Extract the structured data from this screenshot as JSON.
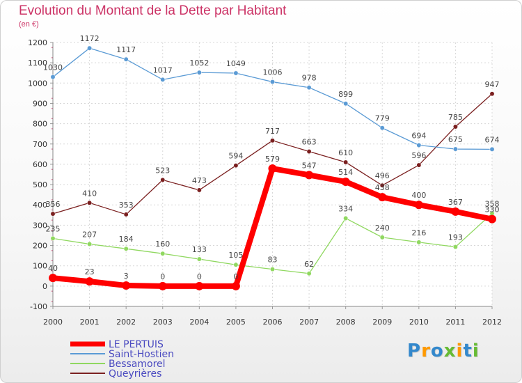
{
  "chart_data": {
    "type": "line",
    "title": "Evolution du Montant de la Dette par Habitant",
    "subtitle": "(en €)",
    "x": [
      "2000",
      "2001",
      "2002",
      "2003",
      "2004",
      "2005",
      "2006",
      "2007",
      "2008",
      "2009",
      "2010",
      "2011",
      "2012"
    ],
    "ylim": [
      -100,
      1200
    ],
    "yticks": [
      -100,
      0,
      100,
      200,
      300,
      400,
      500,
      600,
      700,
      800,
      900,
      1000,
      1100,
      1200
    ],
    "grid": true,
    "legend_position": "bottom-left",
    "series": [
      {
        "name": "LE PERTUIS",
        "color": "#ff0000",
        "values": [
          40,
          23,
          3,
          0,
          0,
          0,
          579,
          547,
          514,
          438,
          400,
          367,
          330
        ],
        "labels": [
          "40",
          "23",
          "3",
          "0",
          "0",
          "0",
          "579",
          "547",
          "514",
          "438",
          "400",
          "367",
          "330"
        ]
      },
      {
        "name": "Saint-Hostien",
        "color": "#5b9bd5",
        "values": [
          1030,
          1172,
          1117,
          1017,
          1052,
          1049,
          1006,
          978,
          899,
          779,
          694,
          675,
          674
        ],
        "labels": [
          "1030",
          "1172",
          "1117",
          "1017",
          "1052",
          "1049",
          "1006",
          "978",
          "899",
          "779",
          "694",
          "675",
          "674"
        ]
      },
      {
        "name": "Bessamorel",
        "color": "#90d860",
        "values": [
          235,
          207,
          184,
          160,
          133,
          105,
          83,
          62,
          334,
          240,
          216,
          193,
          358
        ],
        "labels": [
          "235",
          "207",
          "184",
          "160",
          "133",
          "105",
          "83",
          "62",
          "334",
          "240",
          "216",
          "193",
          "358"
        ]
      },
      {
        "name": "Queyrières",
        "color": "#7b2020",
        "values": [
          356,
          410,
          353,
          523,
          473,
          594,
          717,
          663,
          610,
          496,
          596,
          785,
          947
        ],
        "labels": [
          "356",
          "410",
          "353",
          "523",
          "473",
          "594",
          "717",
          "663",
          "610",
          "496",
          "596",
          "785",
          "947"
        ]
      }
    ]
  },
  "logo": {
    "letters": [
      "P",
      "r",
      "o",
      "x",
      "i",
      "t",
      "i"
    ],
    "colors": [
      "#3388cc",
      "#ff9900",
      "#3388cc",
      "#66bb33",
      "#ff9900",
      "#3388cc",
      "#66bb33"
    ]
  }
}
